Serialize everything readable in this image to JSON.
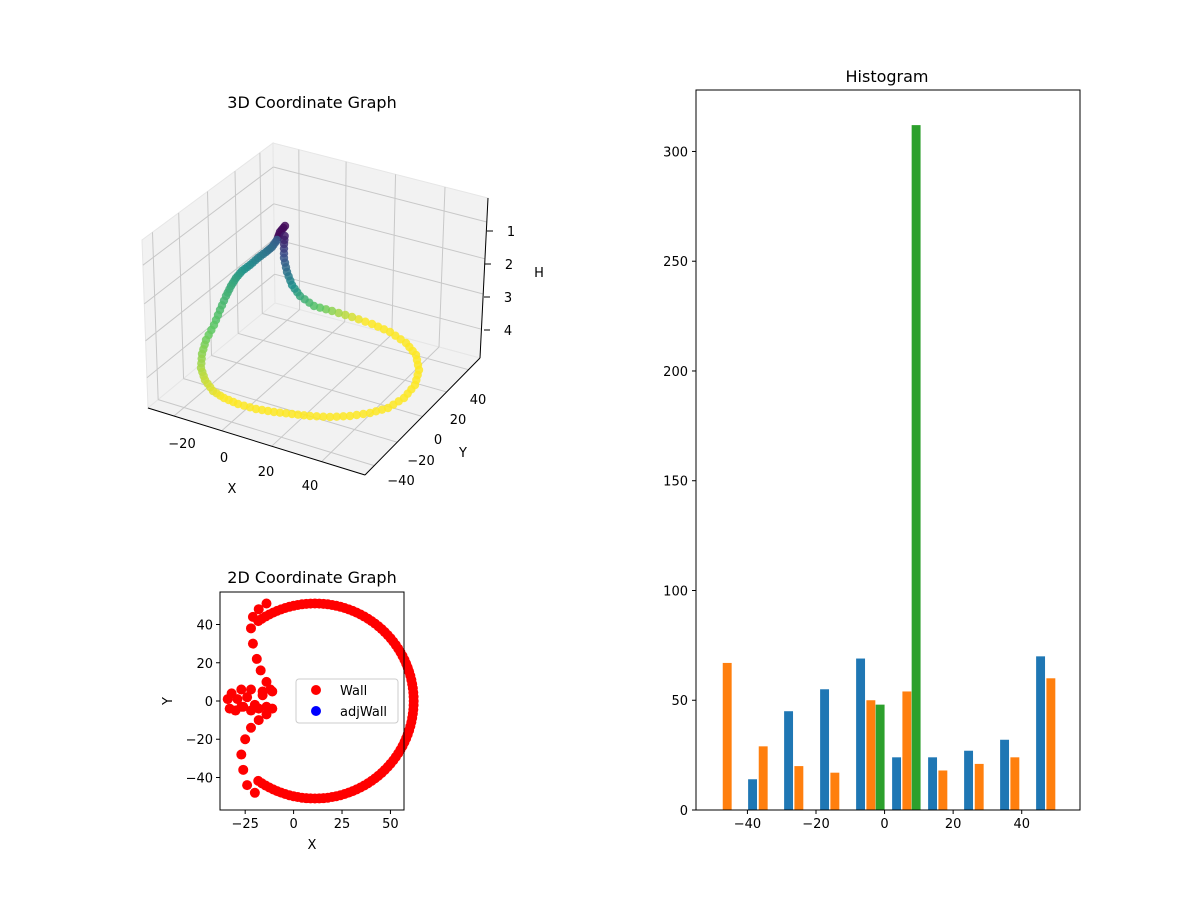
{
  "chart_data": [
    {
      "id": "threed",
      "type": "scatter",
      "title": "3D Coordinate Graph",
      "xlabel": "X",
      "ylabel": "Y",
      "zlabel": "H",
      "xticks": [
        -20,
        0,
        20,
        40
      ],
      "yticks": [
        -40,
        -20,
        0,
        20,
        40
      ],
      "zticks": [
        1,
        2,
        3,
        4
      ],
      "xlim": [
        -35,
        55
      ],
      "ylim": [
        -50,
        55
      ],
      "zlim": [
        0.6,
        4.6
      ],
      "zinverted": true,
      "colormap": [
        "#440154",
        "#3b528b",
        "#21918c",
        "#5ec962",
        "#fde725"
      ],
      "grid": true
    },
    {
      "id": "twod",
      "type": "scatter",
      "title": "2D Coordinate Graph",
      "xlabel": "X",
      "ylabel": "Y",
      "xlim": [
        -38,
        57
      ],
      "ylim": [
        -57,
        57
      ],
      "xticks": [
        -25,
        0,
        25,
        50
      ],
      "yticks": [
        -40,
        -20,
        0,
        20,
        40
      ],
      "series": [
        {
          "name": "Wall",
          "color": "#ff0000"
        },
        {
          "name": "adjWall",
          "color": "#0000ff"
        }
      ],
      "legend": "center-right"
    },
    {
      "id": "hist",
      "type": "bar",
      "title": "Histogram",
      "xlim": [
        -55,
        57
      ],
      "ylim": [
        0,
        328
      ],
      "xticks": [
        -40,
        -20,
        0,
        20,
        40
      ],
      "yticks": [
        0,
        50,
        100,
        150,
        200,
        250,
        300
      ],
      "bar_width": 2.6,
      "series": [
        {
          "color": "#1f77b4",
          "x": [
            -38.5,
            -28,
            -17.5,
            -7,
            3.5,
            14,
            24.5,
            35,
            45.5
          ],
          "values": [
            14,
            45,
            55,
            69,
            24,
            24,
            27,
            32,
            70
          ]
        },
        {
          "color": "#ff7f0e",
          "x": [
            -45.9,
            -35.4,
            -25,
            -14.5,
            -4,
            6.5,
            17,
            27.6,
            38,
            48.5
          ],
          "values": [
            67,
            29,
            20,
            17,
            50,
            54,
            18,
            21,
            24,
            60
          ]
        },
        {
          "color": "#2ca02c",
          "x": [
            -1.3,
            9.2
          ],
          "values": [
            48,
            312
          ]
        }
      ]
    }
  ]
}
